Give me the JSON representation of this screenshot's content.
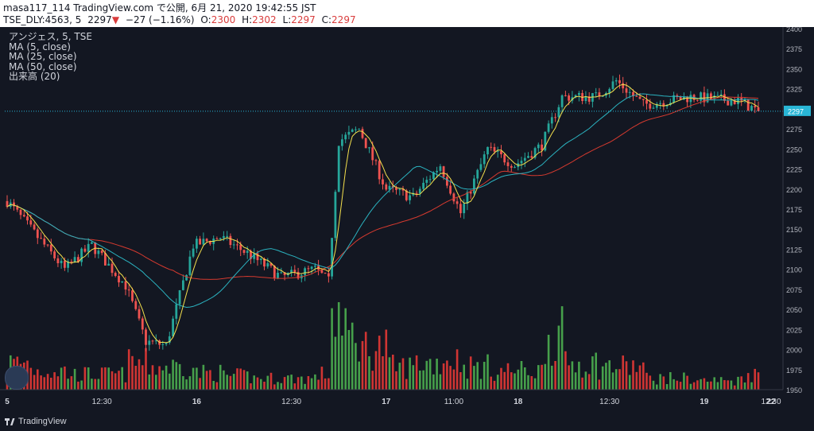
{
  "header": {
    "line1": "masa117_114 TradingView.com で公開, 6月 21, 2020 19:42:55 JST",
    "symbol": "TSE_DLY:4563, 5",
    "last": "2297",
    "down_arrow": "▼",
    "change": "−27 (−1.16%)",
    "o_label": "O:",
    "o_value": "2300",
    "h_label": "H:",
    "h_value": "2302",
    "l_label": "L:",
    "l_value": "2297",
    "c_label": "C:",
    "c_value": "2297"
  },
  "legend": {
    "symbol": "アンジェス, 5, TSE",
    "ma5": "MA (5, close)",
    "ma25": "MA (25, close)",
    "ma50": "MA (50, close)",
    "volume": "出来高 (20)"
  },
  "brand": {
    "name": "TradingView"
  },
  "colors": {
    "background": "#131722",
    "up": "#26a69a",
    "down": "#ef5350",
    "vol_up": "#4caf50",
    "vol_down": "#e53935",
    "ma5": "#f4e04d",
    "ma25": "#2bb3c0",
    "ma50": "#d63a2f",
    "last_price_bg": "#29b6d6"
  },
  "chart_data": {
    "type": "candlestick",
    "y_axis": {
      "min": 1950,
      "max": 2400,
      "ticks": [
        "2400",
        "2375",
        "2350",
        "2325",
        "2300",
        "2275",
        "2250",
        "2225",
        "2200",
        "2175",
        "2150",
        "2125",
        "2100",
        "2075",
        "2050",
        "2025",
        "2000",
        "1975",
        "1950"
      ]
    },
    "x_labels": [
      {
        "label": "5",
        "idx": 0,
        "bold": true
      },
      {
        "label": "12:30",
        "idx": 28
      },
      {
        "label": "16",
        "idx": 56,
        "bold": true
      },
      {
        "label": "12:30",
        "idx": 84
      },
      {
        "label": "17",
        "idx": 112,
        "bold": true
      },
      {
        "label": "11:00",
        "idx": 132
      },
      {
        "label": "18",
        "idx": 151,
        "bold": true
      },
      {
        "label": "12:30",
        "idx": 178
      },
      {
        "label": "19",
        "idx": 206,
        "bold": true
      },
      {
        "label": "12:30",
        "idx": 234
      },
      {
        "label": "22",
        "idx": 262,
        "bold": true
      }
    ],
    "last_price": "2297",
    "last_price_value": 2297,
    "segments": [
      {
        "n": 8,
        "a": 2190,
        "b": 2150,
        "v": 0.35
      },
      {
        "n": 10,
        "a": 2150,
        "b": 2100,
        "v": 0.25
      },
      {
        "n": 8,
        "a": 2100,
        "b": 2130,
        "v": 0.2
      },
      {
        "n": 10,
        "a": 2130,
        "b": 2080,
        "v": 0.2
      },
      {
        "n": 6,
        "a": 2080,
        "b": 2010,
        "v": 0.35
      },
      {
        "n": 6,
        "a": 2010,
        "b": 2005,
        "v": 0.3
      },
      {
        "n": 8,
        "a": 2005,
        "b": 2130,
        "v": 0.3
      },
      {
        "n": 8,
        "a": 2130,
        "b": 2140,
        "v": 0.22
      },
      {
        "n": 8,
        "a": 2140,
        "b": 2120,
        "v": 0.18
      },
      {
        "n": 10,
        "a": 2120,
        "b": 2090,
        "v": 0.15
      },
      {
        "n": 10,
        "a": 2090,
        "b": 2100,
        "v": 0.15
      },
      {
        "n": 4,
        "a": 2100,
        "b": 2085,
        "v": 0.2
      },
      {
        "n": 3,
        "a": 2085,
        "b": 2260,
        "v": 1.0
      },
      {
        "n": 6,
        "a": 2260,
        "b": 2275,
        "v": 0.7
      },
      {
        "n": 8,
        "a": 2275,
        "b": 2200,
        "v": 0.55
      },
      {
        "n": 8,
        "a": 2200,
        "b": 2190,
        "v": 0.3
      },
      {
        "n": 8,
        "a": 2190,
        "b": 2230,
        "v": 0.35
      },
      {
        "n": 6,
        "a": 2230,
        "b": 2170,
        "v": 0.4
      },
      {
        "n": 8,
        "a": 2170,
        "b": 2250,
        "v": 0.3
      },
      {
        "n": 8,
        "a": 2250,
        "b": 2230,
        "v": 0.25
      },
      {
        "n": 8,
        "a": 2230,
        "b": 2255,
        "v": 0.25
      },
      {
        "n": 6,
        "a": 2255,
        "b": 2315,
        "v": 0.7
      },
      {
        "n": 10,
        "a": 2315,
        "b": 2315,
        "v": 0.35
      },
      {
        "n": 6,
        "a": 2315,
        "b": 2335,
        "v": 0.3
      },
      {
        "n": 8,
        "a": 2335,
        "b": 2305,
        "v": 0.3
      },
      {
        "n": 14,
        "a": 2305,
        "b": 2315,
        "v": 0.15
      },
      {
        "n": 14,
        "a": 2315,
        "b": 2310,
        "v": 0.12
      },
      {
        "n": 6,
        "a": 2310,
        "b": 2297,
        "v": 0.2
      }
    ]
  }
}
